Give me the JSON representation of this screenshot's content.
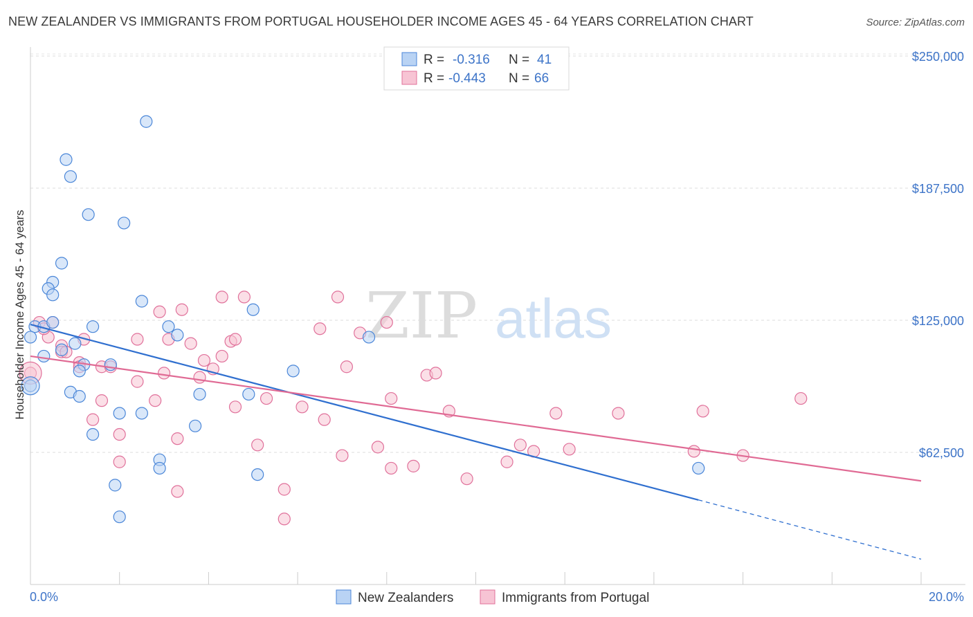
{
  "title": "NEW ZEALANDER VS IMMIGRANTS FROM PORTUGAL HOUSEHOLDER INCOME AGES 45 - 64 YEARS CORRELATION CHART",
  "source": "Source: ZipAtlas.com",
  "watermark_left": "ZIP",
  "watermark_right": "atlas",
  "chart_data": {
    "type": "scatter",
    "ylabel": "Householder Income Ages 45 - 64 years",
    "xlim": [
      0,
      20
    ],
    "ylim": [
      0,
      262500
    ],
    "x_tick_labels": [
      "0.0%",
      "20.0%"
    ],
    "y_tick_values": [
      62500,
      125000,
      187500,
      250000
    ],
    "y_tick_labels": [
      "$62,500",
      "$125,000",
      "$187,500",
      "$250,000"
    ],
    "grid": "horizontal dashed",
    "legend_top": [
      {
        "r_label": "R =",
        "r_value": "-0.316",
        "n_label": "N =",
        "n_value": "41"
      },
      {
        "r_label": "R =",
        "r_value": "-0.443",
        "n_label": "N =",
        "n_value": "66"
      }
    ],
    "series": [
      {
        "name": "New Zealanders",
        "color": "#4a86d8",
        "fill": "#b9d3f4",
        "trend": {
          "x0": 0,
          "y0": 123000,
          "x1": 15,
          "y1": 40000,
          "dashed_to_x": 20,
          "dashed_to_y": 12000
        },
        "points": [
          [
            2.6,
            219000
          ],
          [
            0.8,
            201000
          ],
          [
            0.9,
            193000
          ],
          [
            1.3,
            175000
          ],
          [
            2.1,
            171000
          ],
          [
            0.7,
            152000
          ],
          [
            0.5,
            143000
          ],
          [
            0.4,
            140000
          ],
          [
            0.5,
            137000
          ],
          [
            2.5,
            134000
          ],
          [
            5.0,
            130000
          ],
          [
            0.1,
            122000
          ],
          [
            0.3,
            122000
          ],
          [
            0.5,
            124000
          ],
          [
            1.4,
            122000
          ],
          [
            3.1,
            122000
          ],
          [
            7.6,
            117000
          ],
          [
            0.0,
            117000
          ],
          [
            1.0,
            114000
          ],
          [
            0.7,
            111000
          ],
          [
            0.3,
            108000
          ],
          [
            1.2,
            104000
          ],
          [
            1.8,
            104000
          ],
          [
            1.1,
            101000
          ],
          [
            5.9,
            101000
          ],
          [
            0.0,
            94000
          ],
          [
            0.9,
            91000
          ],
          [
            1.1,
            89000
          ],
          [
            3.8,
            90000
          ],
          [
            4.9,
            90000
          ],
          [
            2.0,
            81000
          ],
          [
            2.5,
            81000
          ],
          [
            1.4,
            71000
          ],
          [
            3.7,
            75000
          ],
          [
            2.9,
            59000
          ],
          [
            2.9,
            55000
          ],
          [
            5.1,
            52000
          ],
          [
            1.9,
            47000
          ],
          [
            2.0,
            32000
          ],
          [
            15.0,
            55000
          ],
          [
            3.3,
            118000
          ]
        ]
      },
      {
        "name": "Immigrants from Portugal",
        "color": "#e0709a",
        "fill": "#f7c4d4",
        "trend": {
          "x0": 0,
          "y0": 108000,
          "x1": 20,
          "y1": 49000
        },
        "points": [
          [
            0.0,
            100000
          ],
          [
            0.2,
            124000
          ],
          [
            0.4,
            117000
          ],
          [
            0.5,
            124000
          ],
          [
            0.7,
            113000
          ],
          [
            0.7,
            110000
          ],
          [
            1.1,
            105000
          ],
          [
            1.2,
            116000
          ],
          [
            1.1,
            103000
          ],
          [
            1.6,
            103000
          ],
          [
            1.6,
            87000
          ],
          [
            1.4,
            78000
          ],
          [
            1.8,
            103000
          ],
          [
            2.0,
            71000
          ],
          [
            2.0,
            58000
          ],
          [
            2.4,
            96000
          ],
          [
            2.4,
            116000
          ],
          [
            2.8,
            87000
          ],
          [
            2.9,
            129000
          ],
          [
            3.0,
            100000
          ],
          [
            3.1,
            116000
          ],
          [
            3.3,
            69000
          ],
          [
            3.3,
            44000
          ],
          [
            3.4,
            130000
          ],
          [
            3.6,
            114000
          ],
          [
            3.8,
            98000
          ],
          [
            3.9,
            106000
          ],
          [
            4.1,
            102000
          ],
          [
            4.3,
            136000
          ],
          [
            4.3,
            108000
          ],
          [
            4.5,
            115000
          ],
          [
            4.8,
            136000
          ],
          [
            4.6,
            116000
          ],
          [
            4.6,
            84000
          ],
          [
            5.1,
            66000
          ],
          [
            5.3,
            88000
          ],
          [
            5.7,
            31000
          ],
          [
            5.7,
            45000
          ],
          [
            6.1,
            84000
          ],
          [
            6.5,
            121000
          ],
          [
            6.6,
            78000
          ],
          [
            6.9,
            136000
          ],
          [
            7.0,
            61000
          ],
          [
            7.1,
            103000
          ],
          [
            7.4,
            119000
          ],
          [
            7.8,
            65000
          ],
          [
            8.0,
            124000
          ],
          [
            8.1,
            88000
          ],
          [
            8.1,
            55000
          ],
          [
            8.6,
            56000
          ],
          [
            8.9,
            99000
          ],
          [
            9.1,
            100000
          ],
          [
            9.4,
            82000
          ],
          [
            9.8,
            50000
          ],
          [
            10.7,
            58000
          ],
          [
            11.0,
            66000
          ],
          [
            11.3,
            63000
          ],
          [
            11.8,
            81000
          ],
          [
            12.1,
            64000
          ],
          [
            13.2,
            81000
          ],
          [
            14.9,
            63000
          ],
          [
            15.1,
            82000
          ],
          [
            16.0,
            61000
          ],
          [
            17.3,
            88000
          ],
          [
            0.3,
            121000
          ],
          [
            0.8,
            110000
          ]
        ]
      }
    ]
  }
}
